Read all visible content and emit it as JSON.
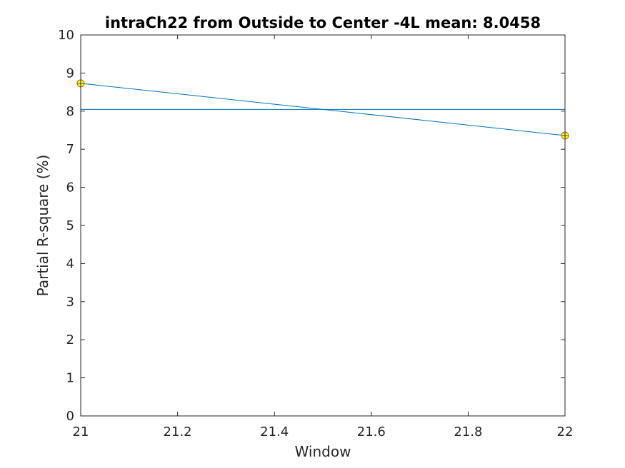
{
  "chart_data": {
    "type": "line",
    "title": "intraCh22 from Outside to Center -4L mean: 8.0458",
    "xlabel": "Window",
    "ylabel": "Partial R-square (%)",
    "xlim": [
      21,
      22
    ],
    "ylim": [
      0,
      10
    ],
    "xticks": [
      21,
      21.2,
      21.4,
      21.6,
      21.8,
      22
    ],
    "xtick_labels": [
      "21",
      "21.2",
      "21.4",
      "21.6",
      "21.8",
      "22"
    ],
    "yticks": [
      0,
      1,
      2,
      3,
      4,
      5,
      6,
      7,
      8,
      9,
      10
    ],
    "ytick_labels": [
      "0",
      "1",
      "2",
      "3",
      "4",
      "5",
      "6",
      "7",
      "8",
      "9",
      "10"
    ],
    "grid": false,
    "series": [
      {
        "x": [
          21,
          22
        ],
        "y": [
          8.73,
          7.36
        ],
        "color": "#0072bd",
        "marker": "circle",
        "marker_color": "#d95319",
        "marker_face": "#ffff00"
      }
    ],
    "reference_line": {
      "y": 8.0458,
      "color": "#0072bd"
    }
  }
}
